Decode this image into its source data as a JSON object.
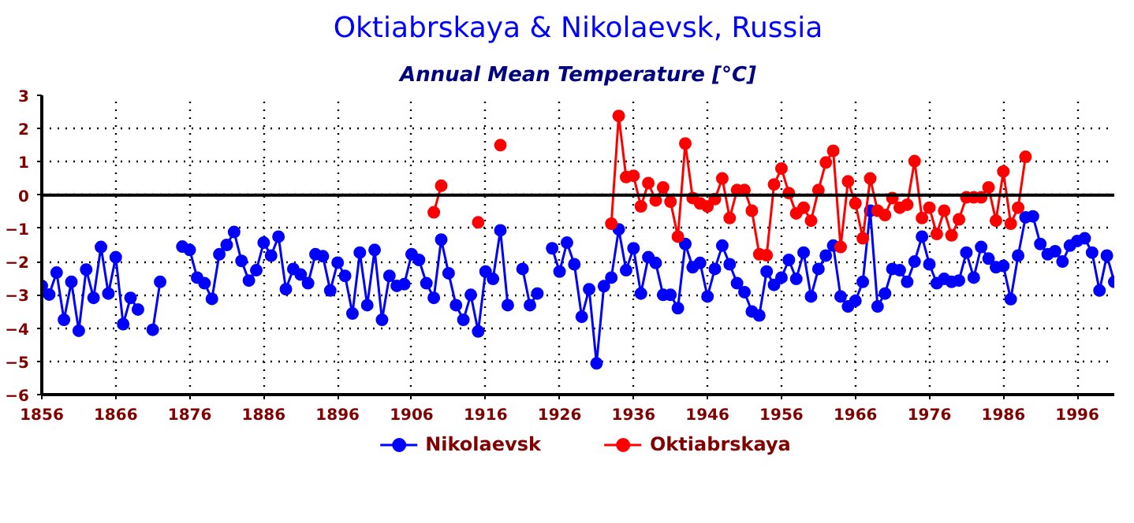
{
  "chart_data": {
    "type": "line",
    "title": "Oktiabrskaya & Nikolaevsk, Russia",
    "subtitle": "Annual Mean Temperature [°C]",
    "x": [
      1856,
      1857,
      1858,
      1859,
      1860,
      1861,
      1862,
      1863,
      1864,
      1865,
      1866,
      1867,
      1868,
      1869,
      1870,
      1871,
      1872,
      1873,
      1874,
      1875,
      1876,
      1877,
      1878,
      1879,
      1880,
      1881,
      1882,
      1883,
      1884,
      1885,
      1886,
      1887,
      1888,
      1889,
      1890,
      1891,
      1892,
      1893,
      1894,
      1895,
      1896,
      1897,
      1898,
      1899,
      1900,
      1901,
      1902,
      1903,
      1904,
      1905,
      1906,
      1907,
      1908,
      1909,
      1910,
      1911,
      1912,
      1913,
      1914,
      1915,
      1916,
      1917,
      1918,
      1919,
      1920,
      1921,
      1922,
      1923,
      1924,
      1925,
      1926,
      1927,
      1928,
      1929,
      1930,
      1931,
      1932,
      1933,
      1934,
      1935,
      1936,
      1937,
      1938,
      1939,
      1940,
      1941,
      1942,
      1943,
      1944,
      1945,
      1946,
      1947,
      1948,
      1949,
      1950,
      1951,
      1952,
      1953,
      1954,
      1955,
      1956,
      1957,
      1958,
      1959,
      1960,
      1961,
      1962,
      1963,
      1964,
      1965,
      1966,
      1967,
      1968,
      1969,
      1970,
      1971,
      1972,
      1973,
      1974,
      1975,
      1976,
      1977,
      1978,
      1979,
      1980,
      1981,
      1982,
      1983,
      1984,
      1985,
      1986,
      1987,
      1988,
      1989,
      1990,
      1991,
      1992,
      1993,
      1994,
      1995,
      1996,
      1997,
      1998,
      1999,
      2000,
      2001
    ],
    "series": [
      {
        "name": "Nikolaevsk",
        "color": "#0000ff",
        "values": [
          -2.73,
          -2.99,
          -2.33,
          -3.75,
          -2.61,
          -4.08,
          -2.24,
          -3.09,
          -1.56,
          -2.96,
          -1.87,
          -3.88,
          -3.09,
          -3.44,
          null,
          -4.05,
          -2.61,
          null,
          null,
          -1.55,
          -1.65,
          -2.48,
          -2.65,
          -3.12,
          -1.78,
          -1.5,
          -1.11,
          -1.98,
          -2.57,
          -2.26,
          -1.43,
          -1.82,
          -1.25,
          -2.83,
          -2.22,
          -2.39,
          -2.65,
          -1.78,
          -1.84,
          -2.87,
          -2.03,
          -2.43,
          -3.56,
          -1.73,
          -3.31,
          -1.65,
          -3.75,
          -2.43,
          -2.73,
          -2.68,
          -1.78,
          -1.95,
          -2.65,
          -3.09,
          -1.34,
          -2.35,
          -3.31,
          -3.75,
          -3.0,
          -4.1,
          -2.3,
          -2.52,
          -1.06,
          -3.31,
          null,
          -2.22,
          -3.31,
          -2.96,
          null,
          -1.6,
          -2.3,
          -1.43,
          -2.08,
          -3.66,
          -2.83,
          -5.06,
          -2.74,
          -2.48,
          -1.03,
          -2.26,
          -1.6,
          -2.96,
          -1.87,
          -2.04,
          -3.0,
          -3.0,
          -3.4,
          -1.47,
          -2.17,
          -2.04,
          -3.05,
          -2.22,
          -1.52,
          -2.08,
          -2.65,
          -2.92,
          -3.5,
          -3.62,
          -2.3,
          -2.7,
          -2.48,
          -1.95,
          -2.52,
          -1.73,
          -3.05,
          -2.22,
          -1.82,
          -1.52,
          -3.05,
          -3.35,
          -3.18,
          -2.61,
          -0.47,
          -3.35,
          -2.96,
          -2.22,
          -2.26,
          -2.61,
          -2.0,
          -1.25,
          -2.08,
          -2.65,
          -2.52,
          -2.61,
          -2.57,
          -1.73,
          -2.48,
          -1.56,
          -1.91,
          -2.17,
          -2.13,
          -3.13,
          -1.82,
          -0.67,
          -0.64,
          -1.47,
          -1.78,
          -1.69,
          -2.0,
          -1.52,
          -1.38,
          -1.3,
          -1.73,
          -2.87,
          -1.82,
          -2.61
        ]
      },
      {
        "name": "Oktiabrskaya",
        "color": "#ff0000",
        "x": [
          1909,
          1910,
          1911,
          1912,
          1913,
          1914,
          1915,
          1916,
          1917,
          1918,
          1919,
          1920,
          1921,
          1922,
          1923,
          1924,
          1925,
          1926,
          1927,
          1928,
          1929,
          1930,
          1931,
          1932,
          1933,
          1934,
          1935,
          1936,
          1937,
          1938,
          1939,
          1940,
          1941,
          1942,
          1943,
          1944,
          1945,
          1946,
          1947,
          1948,
          1949,
          1950,
          1951,
          1952,
          1953,
          1954,
          1955,
          1956,
          1957,
          1958,
          1959,
          1960,
          1961,
          1962,
          1963,
          1964,
          1965,
          1966,
          1967,
          1968,
          1969,
          1970,
          1971,
          1972,
          1973,
          1974,
          1975,
          1976,
          1977,
          1978,
          1979,
          1980,
          1981,
          1982,
          1983,
          1984,
          1985,
          1986,
          1987,
          1988,
          1989
        ],
        "values": [
          -0.52,
          0.28,
          null,
          null,
          null,
          null,
          -0.82,
          null,
          null,
          1.5,
          null,
          null,
          null,
          null,
          null,
          null,
          null,
          null,
          null,
          null,
          null,
          null,
          null,
          null,
          -0.86,
          2.38,
          0.54,
          0.58,
          -0.34,
          0.36,
          -0.16,
          0.23,
          -0.2,
          -1.25,
          1.55,
          -0.09,
          -0.25,
          -0.34,
          -0.12,
          0.5,
          -0.69,
          0.15,
          0.15,
          -0.47,
          -1.78,
          -1.81,
          0.32,
          0.8,
          0.06,
          -0.55,
          -0.38,
          -0.77,
          0.15,
          0.98,
          1.33,
          -1.56,
          0.41,
          -0.25,
          -1.3,
          0.5,
          -0.47,
          -0.6,
          -0.09,
          -0.38,
          -0.29,
          1.02,
          -0.69,
          -0.38,
          -1.17,
          -0.47,
          -1.21,
          -0.73,
          -0.07,
          -0.07,
          -0.07,
          0.23,
          -0.77,
          0.71,
          -0.86,
          -0.38,
          1.15
        ]
      }
    ],
    "xlim": [
      1856,
      2001
    ],
    "xticks": [
      1856,
      1866,
      1876,
      1886,
      1896,
      1906,
      1916,
      1926,
      1936,
      1946,
      1956,
      1966,
      1976,
      1986,
      1996
    ],
    "ylim": [
      -6,
      3
    ],
    "yticks": [
      -6,
      -5,
      -4,
      -3,
      -2,
      -1,
      0,
      1,
      2,
      3
    ],
    "ref_lines": [
      {
        "axis": "y",
        "value": 0,
        "color": "#000000"
      }
    ],
    "grid": true,
    "legend": "bottom",
    "marker": "circle",
    "line_style": "solid"
  }
}
